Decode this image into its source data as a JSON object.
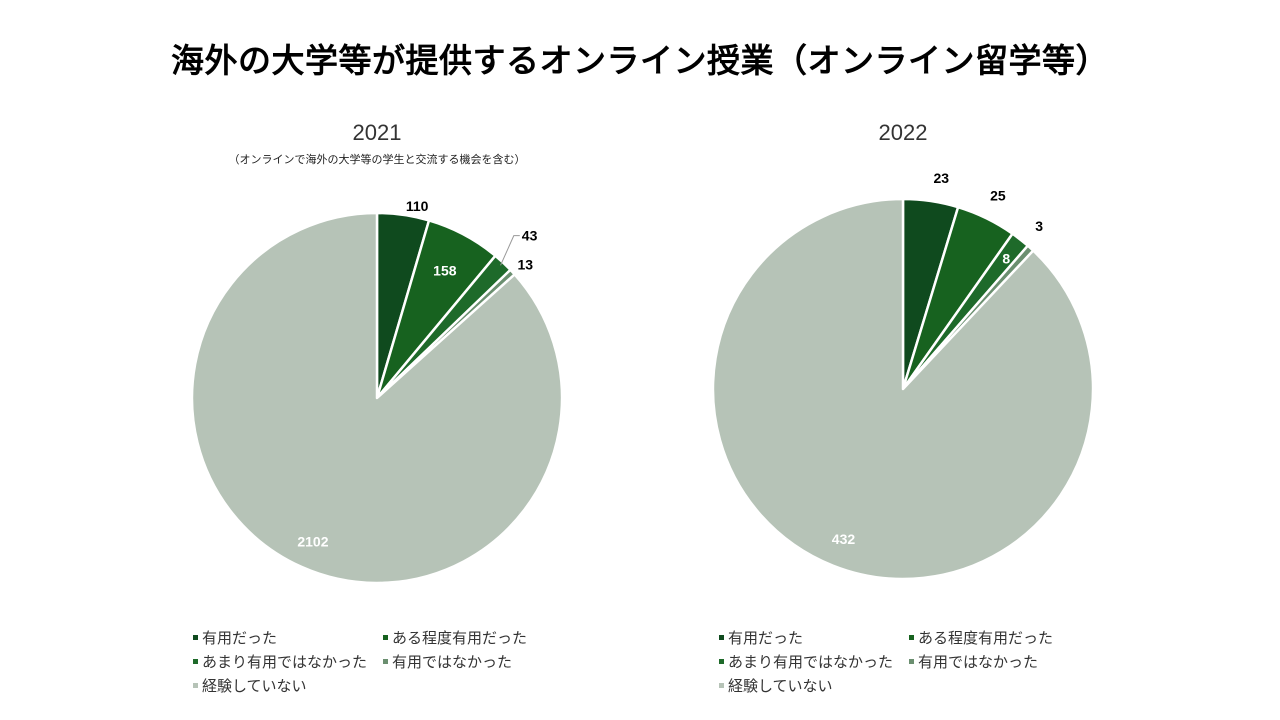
{
  "title": "海外の大学等が提供するオンライン授業（オンライン留学等）",
  "colors": [
    "#0f4a1e",
    "#17621f",
    "#1e6a2a",
    "#6b8f70",
    "#b6c3b7"
  ],
  "chart_data": [
    {
      "type": "pie",
      "title": "2021",
      "subtitle": "（オンラインで海外の大学等の学生と交流する機会を含む）",
      "categories": [
        "有用だった",
        "ある程度有用だった",
        "あまり有用ではなかった",
        "有用ではなかった",
        "経験していない"
      ],
      "values": [
        110,
        158,
        43,
        13,
        2102
      ],
      "data_labels": [
        "110",
        "158",
        "43",
        "13",
        "2102"
      ]
    },
    {
      "type": "pie",
      "title": "2022",
      "subtitle": "",
      "categories": [
        "有用だった",
        "ある程度有用だった",
        "あまり有用ではなかった",
        "有用ではなかった",
        "経験していない"
      ],
      "values": [
        23,
        25,
        8,
        3,
        432
      ],
      "data_labels": [
        "23",
        "25",
        "8",
        "3",
        "432"
      ]
    }
  ]
}
